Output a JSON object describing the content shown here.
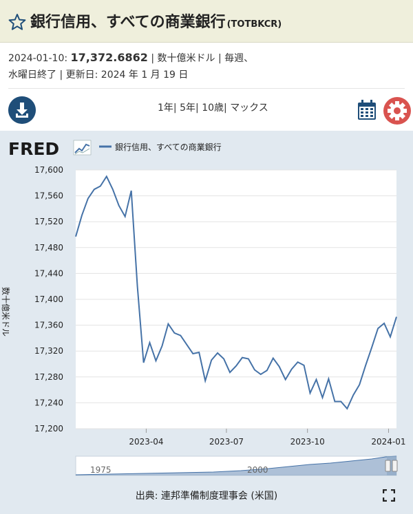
{
  "header": {
    "title": "銀行信用、すべての商業銀行",
    "series_code": "(TOTBKCR)"
  },
  "info": {
    "date": "2024-01-10:",
    "value": "17,372.6862",
    "units_freq": "| 数十億米ドル | 毎週、",
    "line2": "水曜日終了 | 更新日: 2024 年 1 月 19 日"
  },
  "toolbar": {
    "range_1y": "1年",
    "range_5y": "5年",
    "range_10y": "10歳",
    "range_max": "マックス",
    "sep": "|"
  },
  "chart_logo": "FRED",
  "footer": {
    "source": "出典: 連邦準備制度理事会 (米国)"
  },
  "colors": {
    "line": "#4572a7",
    "accent": "#1f4e79",
    "gear": "#d9534f",
    "header_bg": "#efefdc",
    "chart_bg": "#e1e9f0"
  },
  "chart_data": {
    "type": "line",
    "legend": "銀行信用、すべての商業銀行",
    "ylabel": "数十億米ドル",
    "ylim": [
      17200,
      17600
    ],
    "yticks": [
      17200,
      17240,
      17280,
      17320,
      17360,
      17400,
      17440,
      17480,
      17520,
      17560,
      17600
    ],
    "ytick_labels": [
      "17,200",
      "17,240",
      "17,280",
      "17,320",
      "17,360",
      "17,400",
      "17,440",
      "17,480",
      "17,520",
      "17,560",
      "17,600"
    ],
    "xlim": [
      "2023-01-11",
      "2024-01-10"
    ],
    "xticks": [
      "2023-04-01",
      "2023-07-01",
      "2023-10-01",
      "2024-01-01"
    ],
    "xtick_labels": [
      "2023-04",
      "2023-07",
      "2023-10",
      "2024-01"
    ],
    "grid": "horizontal",
    "navigator_labels": [
      "1975",
      "2000"
    ],
    "x": [
      "2023-01-11",
      "2023-01-18",
      "2023-01-25",
      "2023-02-01",
      "2023-02-08",
      "2023-02-15",
      "2023-02-22",
      "2023-03-01",
      "2023-03-08",
      "2023-03-15",
      "2023-03-22",
      "2023-03-29",
      "2023-04-05",
      "2023-04-12",
      "2023-04-19",
      "2023-04-26",
      "2023-05-03",
      "2023-05-10",
      "2023-05-17",
      "2023-05-24",
      "2023-05-31",
      "2023-06-07",
      "2023-06-14",
      "2023-06-21",
      "2023-06-28",
      "2023-07-05",
      "2023-07-12",
      "2023-07-19",
      "2023-07-26",
      "2023-08-02",
      "2023-08-09",
      "2023-08-16",
      "2023-08-23",
      "2023-08-30",
      "2023-09-06",
      "2023-09-13",
      "2023-09-20",
      "2023-09-27",
      "2023-10-04",
      "2023-10-11",
      "2023-10-18",
      "2023-10-25",
      "2023-11-01",
      "2023-11-08",
      "2023-11-15",
      "2023-11-22",
      "2023-11-29",
      "2023-12-06",
      "2023-12-13",
      "2023-12-20",
      "2023-12-27",
      "2024-01-03",
      "2024-01-10"
    ],
    "values": [
      17497,
      17530,
      17556,
      17570,
      17575,
      17590,
      17570,
      17545,
      17528,
      17568,
      17420,
      17302,
      17333,
      17305,
      17328,
      17362,
      17348,
      17344,
      17330,
      17316,
      17318,
      17274,
      17306,
      17317,
      17308,
      17287,
      17297,
      17310,
      17308,
      17291,
      17284,
      17290,
      17309,
      17296,
      17276,
      17292,
      17303,
      17298,
      17255,
      17276,
      17248,
      17277,
      17242,
      17242,
      17231,
      17252,
      17268,
      17298,
      17326,
      17355,
      17363,
      17342,
      17373
    ]
  }
}
